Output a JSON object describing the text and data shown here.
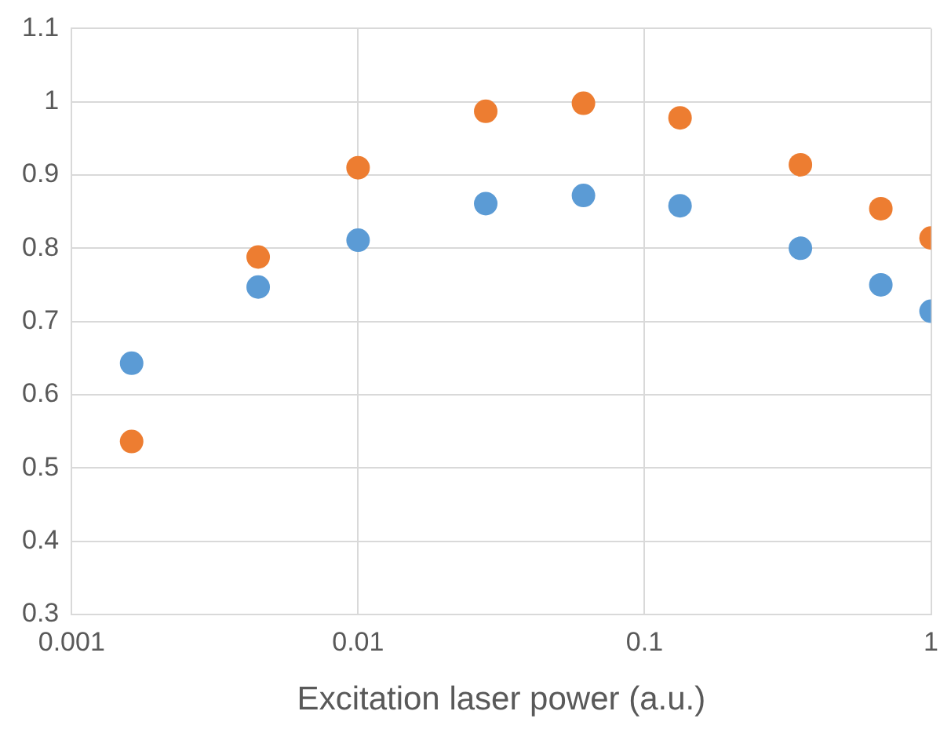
{
  "chart_data": {
    "type": "scatter",
    "xlabel": "Excitation laser power (a.u.)",
    "log": "x",
    "grid": true,
    "legend": false,
    "marker": "circle",
    "xlim": [
      0.001,
      1
    ],
    "xticks": [
      0.001,
      0.01,
      0.1,
      1
    ],
    "ylim": [
      0.3,
      1.1
    ],
    "yticks": [
      0.3,
      0.4,
      0.5,
      0.6,
      0.7,
      0.8,
      0.9,
      1,
      1.1
    ],
    "series": [
      {
        "color": "#5b9bd5",
        "x": [
          0.00162,
          0.00448,
          0.01,
          0.0279,
          0.0612,
          0.133,
          0.35,
          0.668,
          1
        ],
        "values": [
          0.643,
          0.747,
          0.811,
          0.861,
          0.872,
          0.858,
          0.8,
          0.75,
          0.714
        ]
      },
      {
        "color": "#ed7d31",
        "x": [
          0.00162,
          0.00448,
          0.01,
          0.0279,
          0.0612,
          0.133,
          0.35,
          0.668,
          1
        ],
        "values": [
          0.536,
          0.788,
          0.91,
          0.987,
          0.998,
          0.978,
          0.914,
          0.854,
          0.814
        ]
      }
    ]
  }
}
